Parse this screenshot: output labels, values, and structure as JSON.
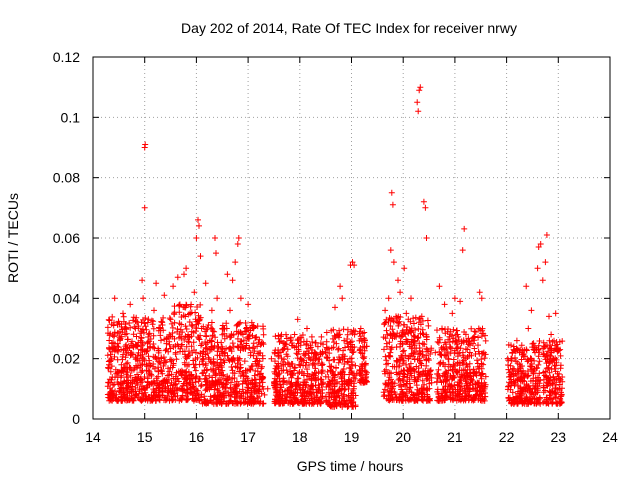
{
  "chart_data": {
    "type": "scatter",
    "title": "Day 202 of 2014, Rate Of TEC Index for receiver nrwy",
    "xlabel": "GPS time / hours",
    "ylabel": "ROTI / TECUs",
    "xlim": [
      14,
      24
    ],
    "ylim": [
      0,
      0.12
    ],
    "x_ticks": [
      "14",
      "15",
      "16",
      "17",
      "18",
      "19",
      "20",
      "21",
      "22",
      "23",
      "24"
    ],
    "y_ticks": [
      "0",
      "0.02",
      "0.04",
      "0.06",
      "0.08",
      "0.1",
      "0.12"
    ],
    "grid": true,
    "legend": "none",
    "marker": "plus",
    "color": "#ff0000",
    "series": [
      {
        "points": [
          [
            14.3,
            0.012
          ],
          [
            14.33,
            0.008
          ],
          [
            14.36,
            0.02
          ],
          [
            14.4,
            0.031
          ],
          [
            14.42,
            0.04
          ],
          [
            14.45,
            0.015
          ],
          [
            14.48,
            0.025
          ],
          [
            14.52,
            0.01
          ],
          [
            14.55,
            0.018
          ],
          [
            14.58,
            0.035
          ],
          [
            14.62,
            0.028
          ],
          [
            14.65,
            0.012
          ],
          [
            14.68,
            0.022
          ],
          [
            14.72,
            0.038
          ],
          [
            14.75,
            0.016
          ],
          [
            14.78,
            0.009
          ],
          [
            14.82,
            0.03
          ],
          [
            14.85,
            0.02
          ],
          [
            14.88,
            0.014
          ],
          [
            14.92,
            0.026
          ],
          [
            14.95,
            0.046
          ],
          [
            14.97,
            0.04
          ],
          [
            15.0,
            0.09
          ],
          [
            15.01,
            0.091
          ],
          [
            15.0,
            0.07
          ],
          [
            15.03,
            0.018
          ],
          [
            15.06,
            0.032
          ],
          [
            15.1,
            0.024
          ],
          [
            15.14,
            0.012
          ],
          [
            15.18,
            0.036
          ],
          [
            15.22,
            0.045
          ],
          [
            15.26,
            0.02
          ],
          [
            15.3,
            0.03
          ],
          [
            15.34,
            0.015
          ],
          [
            15.38,
            0.041
          ],
          [
            15.42,
            0.025
          ],
          [
            15.46,
            0.01
          ],
          [
            15.5,
            0.033
          ],
          [
            15.55,
            0.044
          ],
          [
            15.6,
            0.022
          ],
          [
            15.64,
            0.047
          ],
          [
            15.68,
            0.038
          ],
          [
            15.72,
            0.016
          ],
          [
            15.76,
            0.048
          ],
          [
            15.8,
            0.05
          ],
          [
            15.84,
            0.028
          ],
          [
            15.88,
            0.035
          ],
          [
            15.92,
            0.012
          ],
          [
            15.96,
            0.042
          ],
          [
            16.0,
            0.06
          ],
          [
            16.03,
            0.066
          ],
          [
            16.05,
            0.064
          ],
          [
            16.08,
            0.054
          ],
          [
            16.1,
            0.03
          ],
          [
            16.14,
            0.02
          ],
          [
            16.18,
            0.045
          ],
          [
            16.22,
            0.012
          ],
          [
            16.26,
            0.026
          ],
          [
            16.3,
            0.036
          ],
          [
            16.36,
            0.06
          ],
          [
            16.38,
            0.055
          ],
          [
            16.4,
            0.04
          ],
          [
            16.45,
            0.018
          ],
          [
            16.5,
            0.03
          ],
          [
            16.55,
            0.022
          ],
          [
            16.6,
            0.048
          ],
          [
            16.65,
            0.036
          ],
          [
            16.7,
            0.046
          ],
          [
            16.75,
            0.052
          ],
          [
            16.8,
            0.058
          ],
          [
            16.82,
            0.06
          ],
          [
            16.86,
            0.04
          ],
          [
            16.9,
            0.028
          ],
          [
            16.95,
            0.016
          ],
          [
            17.0,
            0.038
          ],
          [
            17.05,
            0.022
          ],
          [
            17.1,
            0.03
          ],
          [
            17.15,
            0.012
          ],
          [
            17.2,
            0.018
          ],
          [
            17.26,
            0.025
          ],
          [
            17.32,
            0.008
          ],
          [
            17.38,
            0.01
          ],
          [
            17.45,
            0.02
          ],
          [
            17.52,
            0.015
          ],
          [
            17.6,
            0.022
          ],
          [
            17.68,
            0.018
          ],
          [
            17.75,
            0.012
          ],
          [
            17.82,
            0.026
          ],
          [
            17.9,
            0.028
          ],
          [
            17.96,
            0.033
          ],
          [
            18.02,
            0.02
          ],
          [
            18.08,
            0.015
          ],
          [
            18.14,
            0.03
          ],
          [
            18.2,
            0.01
          ],
          [
            18.28,
            0.018
          ],
          [
            18.35,
            0.024
          ],
          [
            18.42,
            0.013
          ],
          [
            18.5,
            0.022
          ],
          [
            18.55,
            0.006
          ],
          [
            18.6,
            0.016
          ],
          [
            18.68,
            0.037
          ],
          [
            18.72,
            0.028
          ],
          [
            18.78,
            0.044
          ],
          [
            18.82,
            0.04
          ],
          [
            18.86,
            0.02
          ],
          [
            18.92,
            0.025
          ],
          [
            18.98,
            0.051
          ],
          [
            19.02,
            0.052
          ],
          [
            19.05,
            0.051
          ],
          [
            19.1,
            0.015
          ],
          [
            19.18,
            0.03
          ],
          [
            19.22,
            0.024
          ],
          [
            19.25,
            0.018
          ],
          [
            19.65,
            0.036
          ],
          [
            19.68,
            0.025
          ],
          [
            19.72,
            0.04
          ],
          [
            19.76,
            0.056
          ],
          [
            19.78,
            0.075
          ],
          [
            19.8,
            0.071
          ],
          [
            19.82,
            0.052
          ],
          [
            19.86,
            0.034
          ],
          [
            19.9,
            0.046
          ],
          [
            19.94,
            0.042
          ],
          [
            19.98,
            0.025
          ],
          [
            20.02,
            0.05
          ],
          [
            20.06,
            0.035
          ],
          [
            20.1,
            0.02
          ],
          [
            20.15,
            0.04
          ],
          [
            20.22,
            0.026
          ],
          [
            20.27,
            0.105
          ],
          [
            20.29,
            0.102
          ],
          [
            20.31,
            0.109
          ],
          [
            20.33,
            0.11
          ],
          [
            20.36,
            0.034
          ],
          [
            20.4,
            0.072
          ],
          [
            20.43,
            0.07
          ],
          [
            20.45,
            0.06
          ],
          [
            20.48,
            0.016
          ],
          [
            20.55,
            0.012
          ],
          [
            20.62,
            0.022
          ],
          [
            20.7,
            0.044
          ],
          [
            20.75,
            0.03
          ],
          [
            20.8,
            0.038
          ],
          [
            20.88,
            0.02
          ],
          [
            20.95,
            0.035
          ],
          [
            21.0,
            0.04
          ],
          [
            21.05,
            0.028
          ],
          [
            21.1,
            0.039
          ],
          [
            21.15,
            0.056
          ],
          [
            21.18,
            0.063
          ],
          [
            21.22,
            0.018
          ],
          [
            21.3,
            0.012
          ],
          [
            21.35,
            0.025
          ],
          [
            21.4,
            0.015
          ],
          [
            21.48,
            0.042
          ],
          [
            21.52,
            0.04
          ],
          [
            21.56,
            0.022
          ],
          [
            22.05,
            0.014
          ],
          [
            22.1,
            0.02
          ],
          [
            22.15,
            0.012
          ],
          [
            22.2,
            0.026
          ],
          [
            22.25,
            0.022
          ],
          [
            22.32,
            0.016
          ],
          [
            22.38,
            0.044
          ],
          [
            22.42,
            0.03
          ],
          [
            22.48,
            0.036
          ],
          [
            22.55,
            0.022
          ],
          [
            22.6,
            0.05
          ],
          [
            22.62,
            0.057
          ],
          [
            22.66,
            0.058
          ],
          [
            22.7,
            0.046
          ],
          [
            22.75,
            0.052
          ],
          [
            22.78,
            0.061
          ],
          [
            22.82,
            0.034
          ],
          [
            22.86,
            0.028
          ],
          [
            22.9,
            0.02
          ],
          [
            22.95,
            0.035
          ],
          [
            23.0,
            0.014
          ],
          [
            23.02,
            0.01
          ]
        ]
      }
    ],
    "clusters": [
      {
        "x": [
          14.28,
          15.55
        ],
        "y_low": 0.006,
        "y_high": 0.034
      },
      {
        "x": [
          15.55,
          16.1
        ],
        "y_low": 0.006,
        "y_high": 0.038
      },
      {
        "x": [
          16.1,
          17.3
        ],
        "y_low": 0.005,
        "y_high": 0.032
      },
      {
        "x": [
          17.5,
          18.45
        ],
        "y_low": 0.005,
        "y_high": 0.028
      },
      {
        "x": [
          18.5,
          19.08
        ],
        "y_low": 0.004,
        "y_high": 0.03
      },
      {
        "x": [
          19.15,
          19.3
        ],
        "y_low": 0.012,
        "y_high": 0.03
      },
      {
        "x": [
          19.62,
          20.55
        ],
        "y_low": 0.006,
        "y_high": 0.034
      },
      {
        "x": [
          20.65,
          21.6
        ],
        "y_low": 0.006,
        "y_high": 0.03
      },
      {
        "x": [
          22.02,
          22.65
        ],
        "y_low": 0.005,
        "y_high": 0.026
      },
      {
        "x": [
          22.7,
          23.08
        ],
        "y_low": 0.005,
        "y_high": 0.026
      }
    ]
  }
}
